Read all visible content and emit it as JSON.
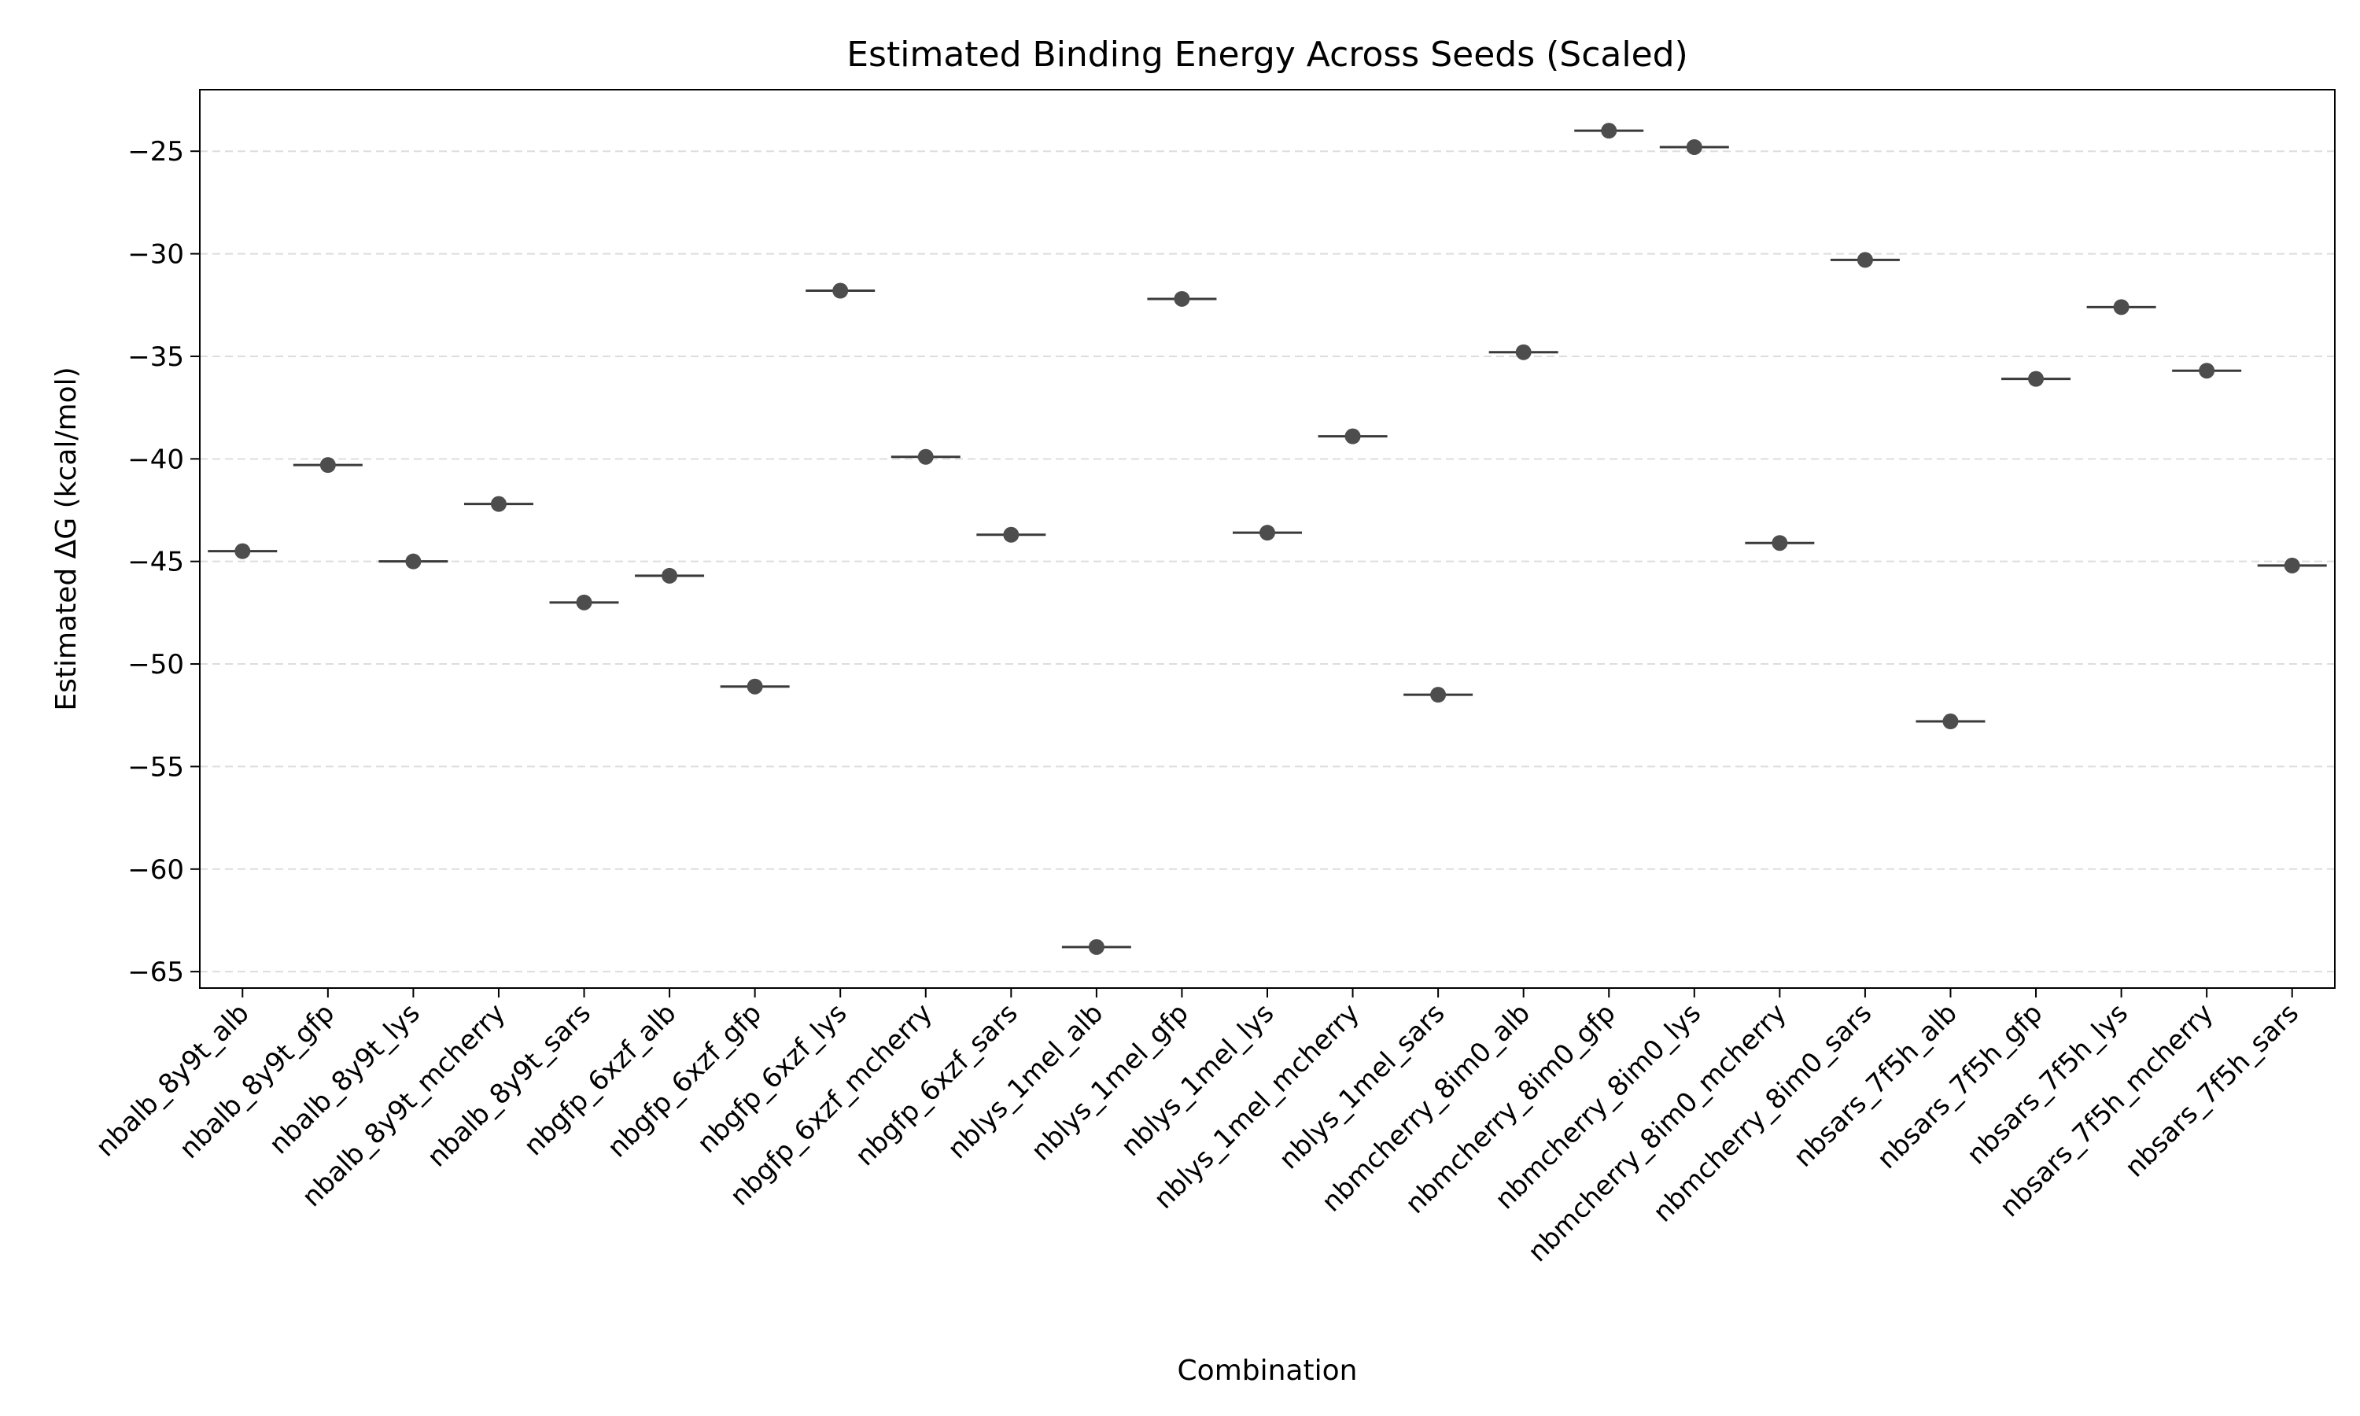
{
  "chart_data": {
    "type": "scatter",
    "title": "Estimated Binding Energy Across Seeds (Scaled)",
    "xlabel": "Combination",
    "ylabel": "Estimated ΔG (kcal/mol)",
    "ylim": [
      -65.8,
      -22.0
    ],
    "yticks": [
      -25,
      -30,
      -35,
      -40,
      -45,
      -50,
      -55,
      -60,
      -65
    ],
    "ytick_labels": [
      "−25",
      "−30",
      "−35",
      "−40",
      "−45",
      "−50",
      "−55",
      "−60",
      "−65"
    ],
    "grid": "y-dashed",
    "categories": [
      "nbalb_8y9t_alb",
      "nbalb_8y9t_gfp",
      "nbalb_8y9t_lys",
      "nbalb_8y9t_mcherry",
      "nbalb_8y9t_sars",
      "nbgfp_6xzf_alb",
      "nbgfp_6xzf_gfp",
      "nbgfp_6xzf_lys",
      "nbgfp_6xzf_mcherry",
      "nbgfp_6xzf_sars",
      "nblys_1mel_alb",
      "nblys_1mel_gfp",
      "nblys_1mel_lys",
      "nblys_1mel_mcherry",
      "nblys_1mel_sars",
      "nbmcherry_8im0_alb",
      "nbmcherry_8im0_gfp",
      "nbmcherry_8im0_lys",
      "nbmcherry_8im0_mcherry",
      "nbmcherry_8im0_sars",
      "nbsars_7f5h_alb",
      "nbsars_7f5h_gfp",
      "nbsars_7f5h_lys",
      "nbsars_7f5h_mcherry",
      "nbsars_7f5h_sars"
    ],
    "values": [
      -44.5,
      -40.3,
      -45.0,
      -42.2,
      -47.0,
      -45.7,
      -51.1,
      -31.8,
      -39.9,
      -43.7,
      -63.8,
      -32.2,
      -43.6,
      -38.9,
      -51.5,
      -34.8,
      -24.0,
      -24.8,
      -44.1,
      -30.3,
      -52.8,
      -36.1,
      -32.6,
      -35.7,
      -45.2
    ],
    "colors": {
      "point": "#4d4d4d",
      "median_line": "#3a3a3a",
      "grid": "#dddddd",
      "axis": "#000000"
    }
  }
}
